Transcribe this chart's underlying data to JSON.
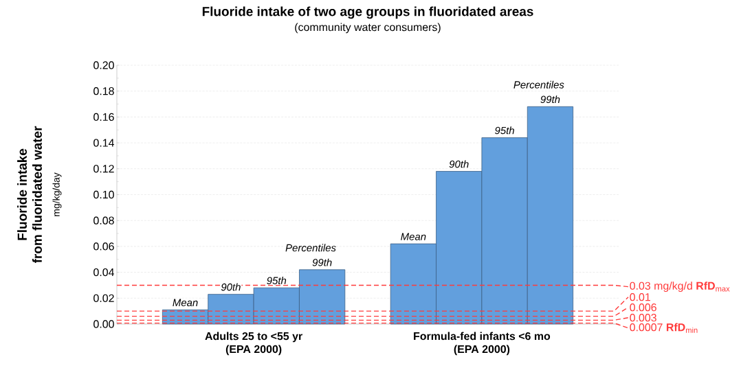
{
  "chart_data": {
    "type": "bar",
    "title": "Fluoride intake of two age groups in fluoridated areas",
    "subtitle": "(community water consumers)",
    "ylabel": "Fluoride intake\nfrom fluoridated water",
    "categories": [
      "Adults 25 to <55 yr\n(EPA 2000)",
      "Formula-fed infants <6 mo\n(EPA 2000)"
    ],
    "series": [
      {
        "name": "Mean",
        "color": "#629fdd",
        "values": [
          0.011,
          0.062
        ]
      },
      {
        "name": "90th",
        "color": "#629fdd",
        "values": [
          0.023,
          0.118
        ]
      },
      {
        "name": "95th",
        "color": "#629fdd",
        "values": [
          0.028,
          0.144
        ]
      },
      {
        "name": "99th",
        "color": "#629fdd",
        "values": [
          0.042,
          0.168
        ]
      }
    ],
    "ylim": [
      0,
      0.2
    ],
    "yticks": [
      {
        "value": 0,
        "label": "0.00"
      },
      {
        "value": 0.02,
        "label": "0.02"
      },
      {
        "value": 0.04,
        "label": "0.04"
      },
      {
        "value": 0.06,
        "label": "0.06"
      },
      {
        "value": 0.08,
        "label": "0.08"
      },
      {
        "value": 0.1,
        "label": "0.10"
      },
      {
        "value": 0.12,
        "label": "0.12"
      },
      {
        "value": 0.14,
        "label": "0.14"
      },
      {
        "value": 0.16,
        "label": "0.16"
      },
      {
        "value": 0.18,
        "label": "0.18"
      },
      {
        "value": 0.2,
        "label": "0.20"
      }
    ],
    "grid": "y",
    "legend": false,
    "ref_lines": [
      {
        "axis": "y",
        "value": 0.03,
        "label": "0.03 mg/kg/d  **RfD**$_{max}$",
        "color": "#ff3b3b",
        "line_style": "dashed"
      },
      {
        "axis": "y",
        "value": 0.01,
        "label": "0.01",
        "color": "#ff3b3b",
        "line_style": "dashed"
      },
      {
        "axis": "y",
        "value": 0.006,
        "label": "0.006",
        "color": "#ff3b3b",
        "line_style": "dashed"
      },
      {
        "axis": "y",
        "value": 0.003,
        "label": "0.003",
        "color": "#ff3b3b",
        "line_style": "dashed"
      },
      {
        "axis": "y",
        "value": 0.0007,
        "label": "0.0007  **RfD**$_{min}$",
        "color": "#ff3b3b",
        "line_style": "dashed"
      }
    ],
    "annotations": [
      "mg/kg/day",
      "Percentiles",
      "Percentiles"
    ]
  }
}
